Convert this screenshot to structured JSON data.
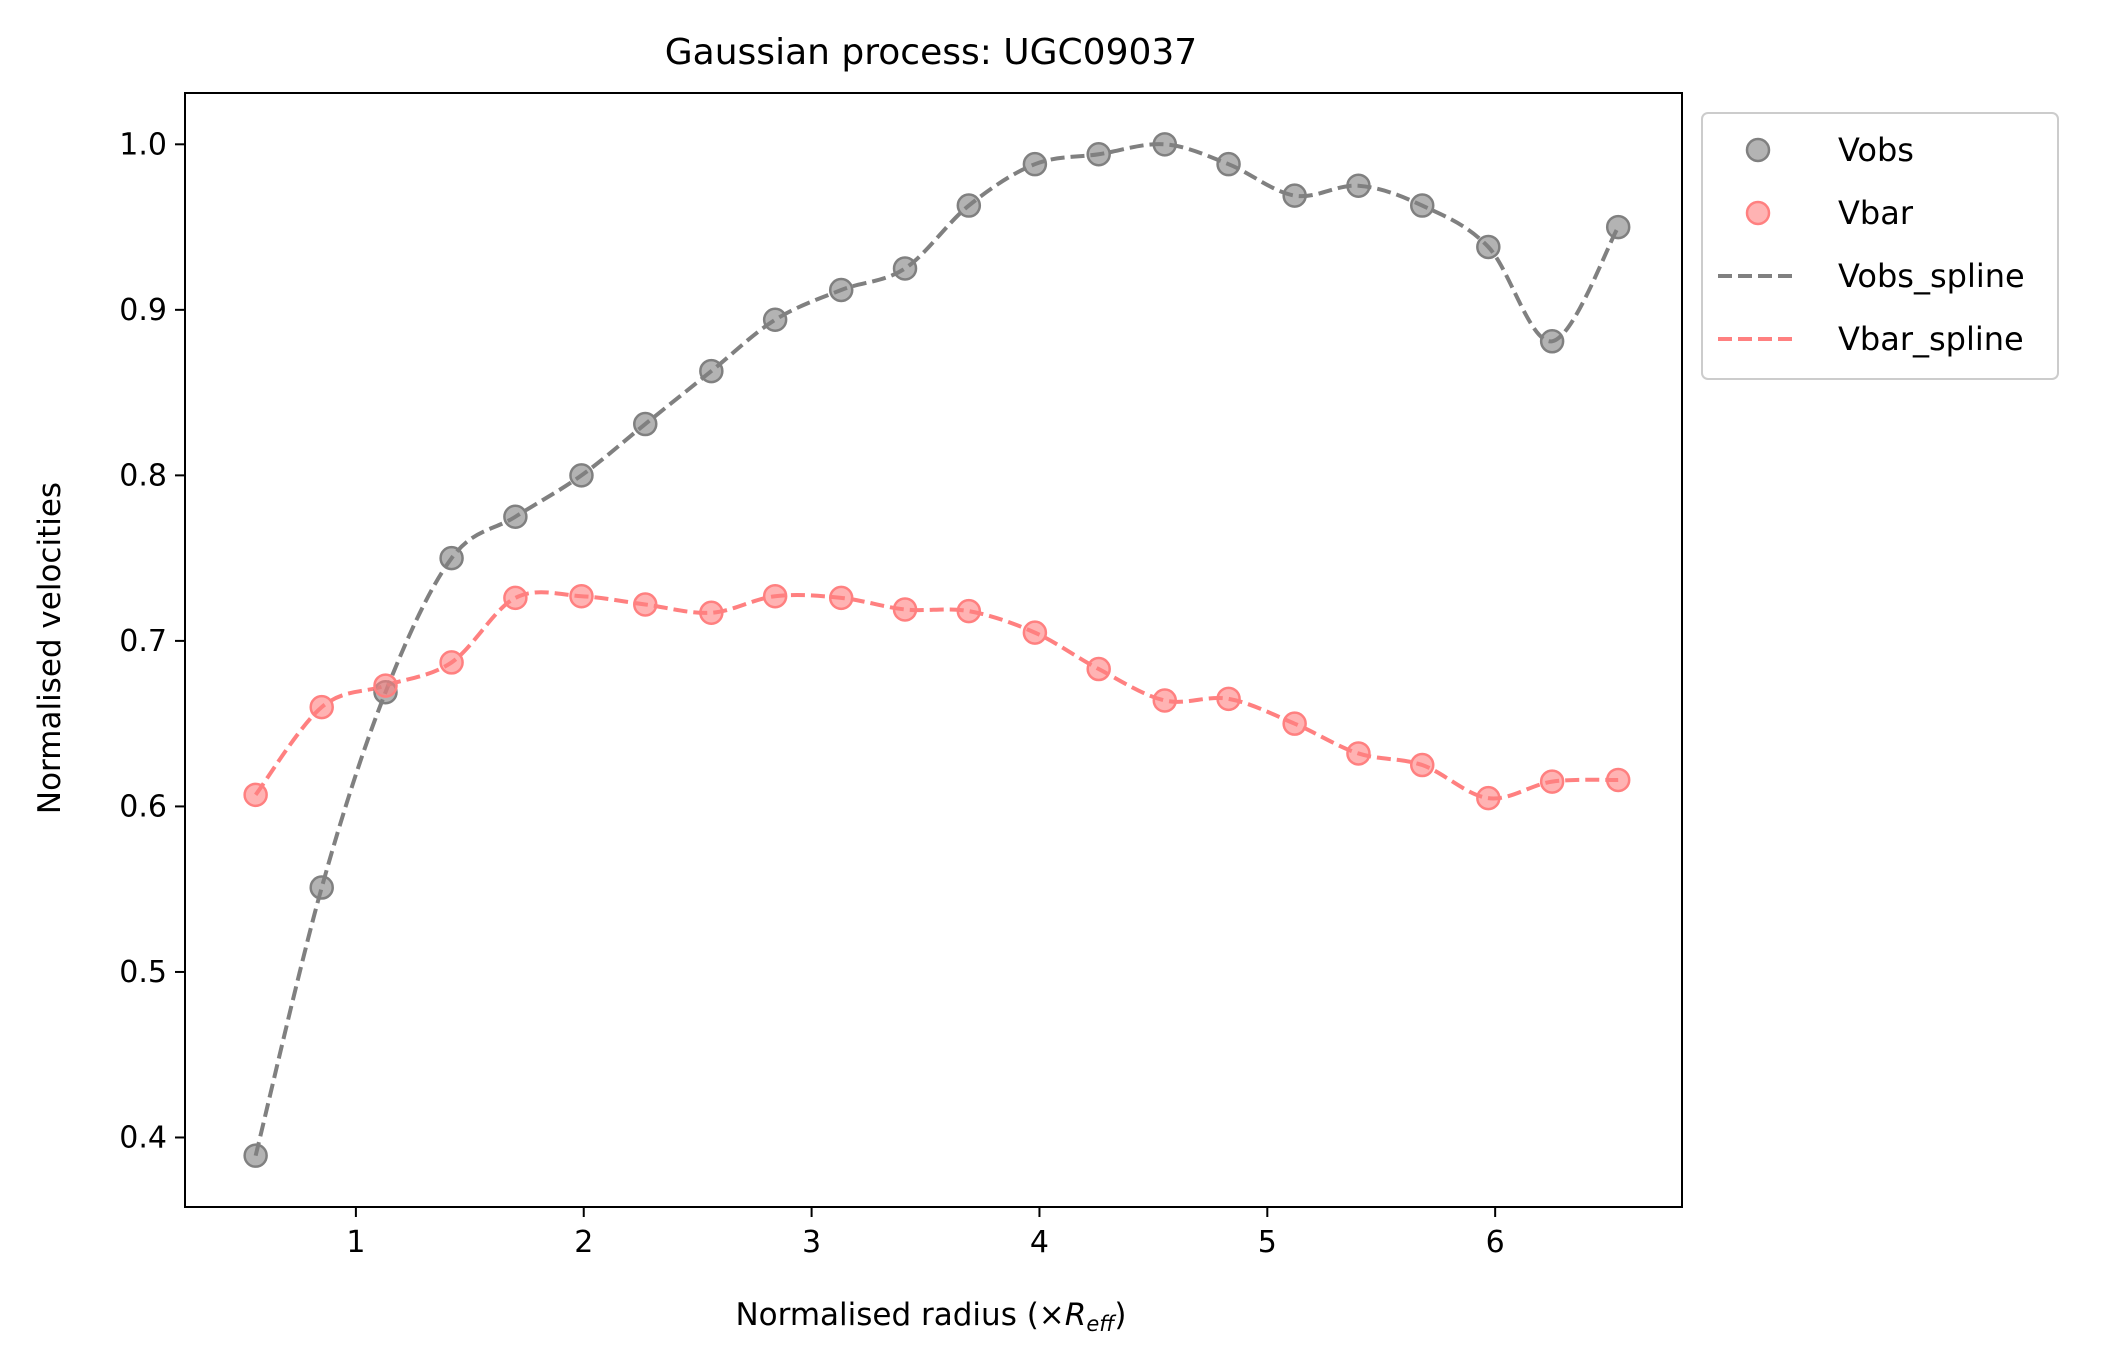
{
  "chart_data": {
    "type": "scatter",
    "title": "Gaussian process: UGC09037",
    "xlabel": "Normalised radius (×",
    "xlabel_sub": "R",
    "xlabel_subsub": "eff",
    "xlabel_end": ")",
    "ylabel": "Normalised velocities",
    "xlim": [
      0.25,
      6.82
    ],
    "ylim": [
      0.358,
      1.031
    ],
    "xticks": [
      1,
      2,
      3,
      4,
      5,
      6
    ],
    "xtick_labels": [
      "1",
      "2",
      "3",
      "4",
      "5",
      "6"
    ],
    "yticks": [
      0.4,
      0.5,
      0.6,
      0.7,
      0.8,
      0.9,
      1.0
    ],
    "ytick_labels": [
      "0.4",
      "0.5",
      "0.6",
      "0.7",
      "0.8",
      "0.9",
      "1.0"
    ],
    "grid": false,
    "legend_position": "outside-top-right",
    "x": [
      0.56,
      0.85,
      1.13,
      1.42,
      1.7,
      1.99,
      2.27,
      2.56,
      2.84,
      3.13,
      3.41,
      3.69,
      3.98,
      4.26,
      4.55,
      4.83,
      5.12,
      5.4,
      5.68,
      5.97,
      6.25,
      6.54
    ],
    "series": [
      {
        "name": "Vobs",
        "kind": "points",
        "color": "#808080",
        "values": [
          0.389,
          0.551,
          0.669,
          0.75,
          0.775,
          0.8,
          0.831,
          0.863,
          0.894,
          0.912,
          0.925,
          0.963,
          0.988,
          0.994,
          1.0,
          0.988,
          0.969,
          0.975,
          0.963,
          0.938,
          0.881,
          0.95
        ]
      },
      {
        "name": "Vbar",
        "kind": "points",
        "color": "#ff8080",
        "values": [
          0.607,
          0.66,
          0.673,
          0.687,
          0.726,
          0.727,
          0.722,
          0.717,
          0.727,
          0.726,
          0.719,
          0.718,
          0.705,
          0.683,
          0.664,
          0.665,
          0.65,
          0.632,
          0.625,
          0.605,
          0.615,
          0.616
        ]
      },
      {
        "name": "Vobs_spline",
        "kind": "line",
        "color": "#808080",
        "values": [
          0.389,
          0.551,
          0.669,
          0.75,
          0.775,
          0.8,
          0.831,
          0.863,
          0.894,
          0.912,
          0.925,
          0.963,
          0.988,
          0.994,
          1.0,
          0.988,
          0.969,
          0.975,
          0.963,
          0.938,
          0.881,
          0.95
        ]
      },
      {
        "name": "Vbar_spline",
        "kind": "line",
        "color": "#ff8080",
        "values": [
          0.607,
          0.66,
          0.673,
          0.687,
          0.726,
          0.727,
          0.722,
          0.717,
          0.727,
          0.726,
          0.719,
          0.718,
          0.705,
          0.683,
          0.664,
          0.665,
          0.65,
          0.632,
          0.625,
          0.605,
          0.615,
          0.616
        ]
      }
    ]
  }
}
